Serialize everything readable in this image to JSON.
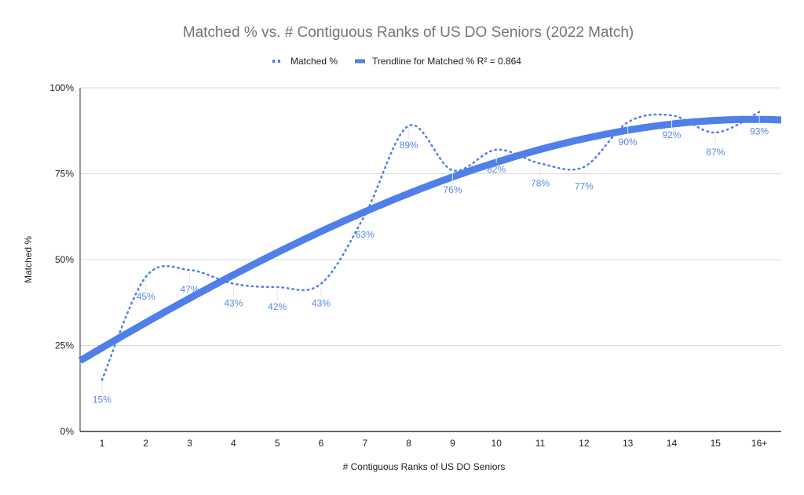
{
  "chart_data": {
    "type": "line",
    "title": "Matched % vs. # Contiguous Ranks of US DO Seniors (2022 Match)",
    "xlabel": "# Contiguous Ranks of US DO Seniors",
    "ylabel": "Matched %",
    "categories": [
      "1",
      "2",
      "3",
      "4",
      "5",
      "6",
      "7",
      "8",
      "9",
      "10",
      "11",
      "12",
      "13",
      "14",
      "15",
      "16+"
    ],
    "series": [
      {
        "name": "Matched %",
        "values": [
          15,
          45,
          47,
          43,
          42,
          43,
          63,
          89,
          76,
          82,
          78,
          77,
          90,
          92,
          87,
          93
        ],
        "style": "dotted smooth",
        "data_labels": [
          "15%",
          "45%",
          "47%",
          "43%",
          "42%",
          "43%",
          "63%",
          "89%",
          "76%",
          "82%",
          "78%",
          "77%",
          "90%",
          "92%",
          "87%",
          "93%"
        ]
      }
    ],
    "trendline": {
      "name": "Trendline for Matched % R² = 0.864",
      "type": "polynomial",
      "r_squared": 0.864
    },
    "yticks": [
      "0%",
      "25%",
      "50%",
      "75%",
      "100%"
    ],
    "ylim": [
      0,
      100
    ],
    "grid": true,
    "legend": "top-center",
    "colors": {
      "series": "#4f7fe8",
      "trendline": "#4f7fe8",
      "data_label": "#5b87ea",
      "title": "#757575"
    }
  }
}
